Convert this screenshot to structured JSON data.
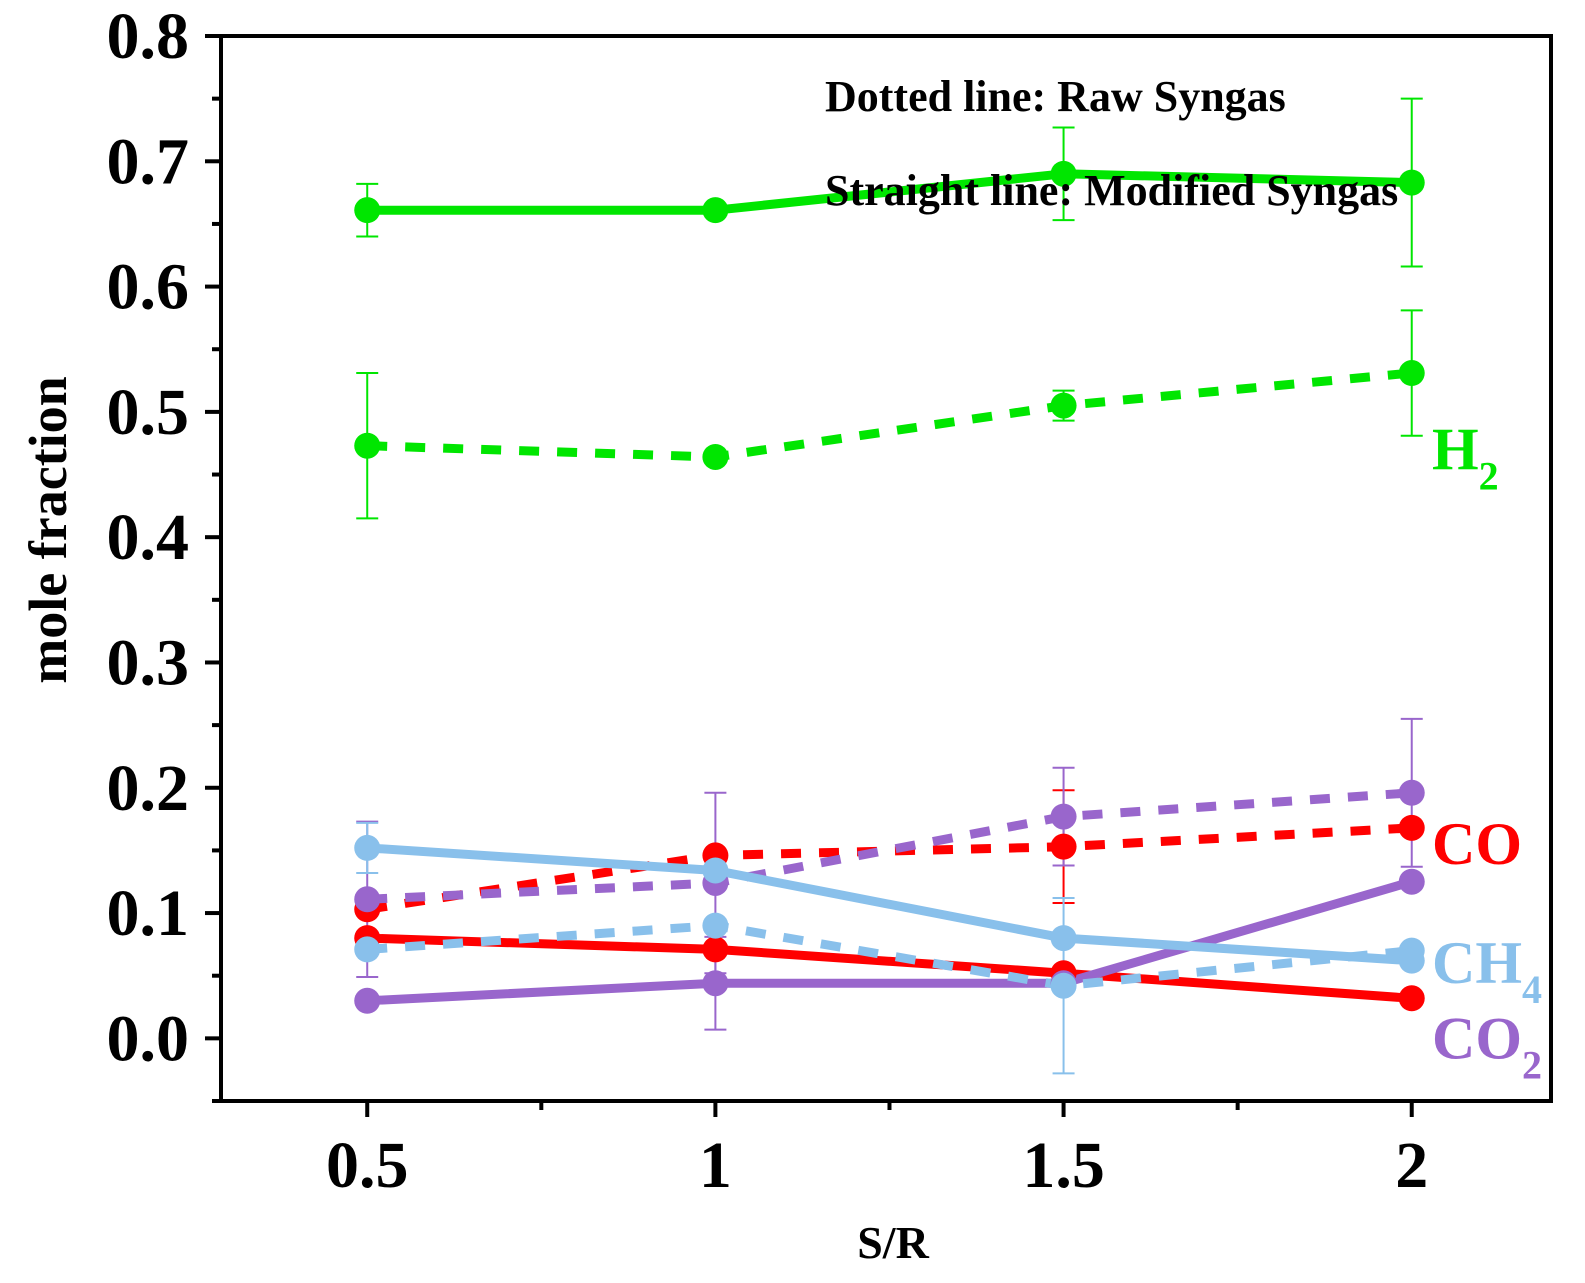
{
  "chart_data": {
    "type": "line",
    "title": "",
    "xlabel": "S/R",
    "ylabel": "mole fraction",
    "x": [
      0.5,
      1,
      1.5,
      2
    ],
    "x_tick_labels": [
      "0.5",
      "1",
      "1.5",
      "2"
    ],
    "y_tick_labels": [
      "0.0",
      "0.1",
      "0.2",
      "0.3",
      "0.4",
      "0.5",
      "0.6",
      "0.7",
      "0.8"
    ],
    "xlim": [
      0.29,
      2.2
    ],
    "ylim": [
      -0.05,
      0.8
    ],
    "grid": false,
    "annotations": {
      "dotted": "Dotted line: Raw Syngas",
      "straight": "Straight line: Modified Syngas"
    },
    "series": [
      {
        "name": "H2 Raw Syngas",
        "gas": "H2",
        "style": "dotted",
        "color": "#00e600",
        "values": [
          0.473,
          0.464,
          0.505,
          0.531
        ],
        "errors": [
          0.058,
          0.0,
          0.012,
          0.05
        ]
      },
      {
        "name": "H2 Modified Syngas",
        "gas": "H2",
        "style": "solid",
        "color": "#00e600",
        "values": [
          0.661,
          0.661,
          0.69,
          0.683
        ],
        "errors": [
          0.021,
          0.0,
          0.037,
          0.067
        ]
      },
      {
        "name": "CO Raw Syngas",
        "gas": "CO",
        "style": "dotted",
        "color": "#ff0000",
        "values": [
          0.103,
          0.146,
          0.153,
          0.168
        ],
        "errors": [
          0.0,
          0.0,
          0.045,
          0.0
        ]
      },
      {
        "name": "CO Modified Syngas",
        "gas": "CO",
        "style": "solid",
        "color": "#ff0000",
        "values": [
          0.08,
          0.071,
          0.052,
          0.032
        ],
        "errors": [
          0.0,
          0.0,
          0.0,
          0.0
        ]
      },
      {
        "name": "CO2 Raw Syngas",
        "gas": "CO2",
        "style": "dotted",
        "color": "#9966cc",
        "values": [
          0.111,
          0.124,
          0.177,
          0.196
        ],
        "errors": [
          0.062,
          0.072,
          0.039,
          0.059
        ]
      },
      {
        "name": "CO2 Modified Syngas",
        "gas": "CO2",
        "style": "solid",
        "color": "#9966cc",
        "values": [
          0.03,
          0.044,
          0.044,
          0.125
        ],
        "errors": [
          0.0,
          0.037,
          0.0,
          0.0
        ]
      },
      {
        "name": "CH4 Raw Syngas",
        "gas": "CH4",
        "style": "dotted",
        "color": "#89c0eb",
        "values": [
          0.071,
          0.09,
          0.042,
          0.07
        ],
        "errors": [
          0.0,
          0.0,
          0.07,
          0.0
        ]
      },
      {
        "name": "CH4 Modified Syngas",
        "gas": "CH4",
        "style": "solid",
        "color": "#89c0eb",
        "values": [
          0.152,
          0.134,
          0.08,
          0.062
        ],
        "errors": [
          0.02,
          0.0,
          0.0,
          0.0
        ]
      }
    ],
    "series_labels": [
      {
        "gas": "H2",
        "base": "H",
        "sub": "2",
        "color": "#00e600",
        "anchor_y": 0.47
      },
      {
        "gas": "CO",
        "base": "CO",
        "sub": "",
        "color": "#ff0000",
        "anchor_y": 0.155
      },
      {
        "gas": "CH4",
        "base": "CH",
        "sub": "4",
        "color": "#89c0eb",
        "anchor_y": 0.06
      },
      {
        "gas": "CO2",
        "base": "CO",
        "sub": "2",
        "color": "#9966cc",
        "anchor_y": 0.0
      }
    ]
  }
}
